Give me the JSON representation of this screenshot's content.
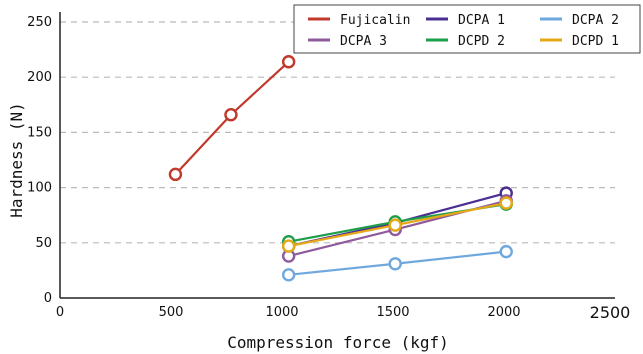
{
  "chart_data": {
    "type": "line",
    "xlabel": "Compression force (kgf)",
    "ylabel": "Hardness (N)",
    "xlim": [
      0,
      2500
    ],
    "ylim": [
      0,
      250
    ],
    "x_ticks": [
      0,
      500,
      1000,
      1500,
      2000,
      2500
    ],
    "y_ticks": [
      0,
      50,
      100,
      150,
      200,
      250
    ],
    "grid": "horizontal dashed",
    "legend_position": "top-right",
    "series": [
      {
        "name": "Fujicalin",
        "color": "#c0392b",
        "x": [
          520,
          770,
          1030
        ],
        "y": [
          112,
          166,
          214
        ]
      },
      {
        "name": "DCPA 1",
        "color": "#4b2e91",
        "x": [
          1030,
          1510,
          2010
        ],
        "y": [
          47,
          68,
          95
        ]
      },
      {
        "name": "DCPA 2",
        "color": "#6fa8dc",
        "x": [
          1030,
          1510,
          2010
        ],
        "y": [
          21,
          31,
          42
        ]
      },
      {
        "name": "DCPA 3",
        "color": "#8e5a9c",
        "x": [
          1030,
          1510,
          2010
        ],
        "y": [
          38,
          62,
          88
        ]
      },
      {
        "name": "DCPD 2",
        "color": "#1e9e4a",
        "x": [
          1030,
          1510,
          2010
        ],
        "y": [
          51,
          69,
          85
        ]
      },
      {
        "name": "DCPD 1",
        "color": "#e6a817",
        "x": [
          1030,
          1510,
          2010
        ],
        "y": [
          47,
          66,
          86
        ]
      }
    ]
  }
}
